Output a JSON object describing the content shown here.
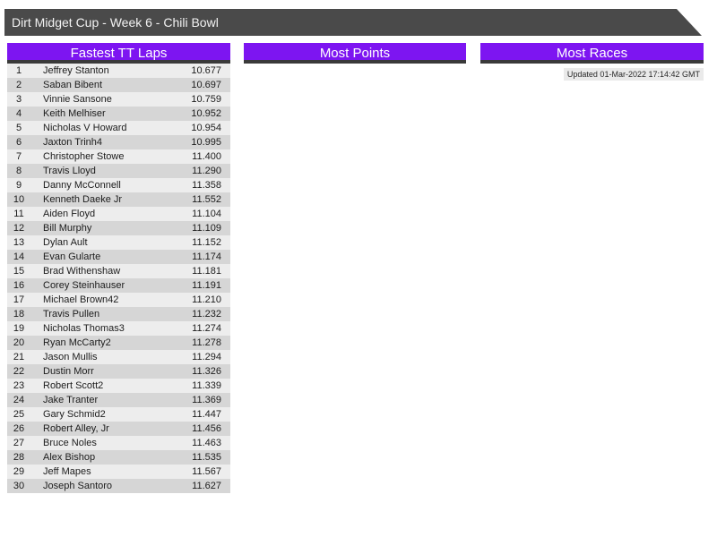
{
  "title_bar": {
    "title": "Dirt Midget Cup - Week 6 - Chili Bowl"
  },
  "updated": {
    "text": "Updated 01-Mar-2022 17:14:42 GMT"
  },
  "colors": {
    "title_bar_bg": "#4a4a4a",
    "panel_header_bg": "#7d15f1",
    "panel_header_underline": "#3a3a3a",
    "row_odd_bg": "#ededed",
    "row_even_bg": "#d6d6d6",
    "updated_bg": "#eaeaea"
  },
  "panels": [
    {
      "title": "Fastest TT Laps",
      "columns": [
        "rank",
        "name",
        "time"
      ],
      "rows": [
        {
          "rank": "1",
          "name": "Jeffrey Stanton",
          "time": "10.677"
        },
        {
          "rank": "2",
          "name": "Saban Bibent",
          "time": "10.697"
        },
        {
          "rank": "3",
          "name": "Vinnie Sansone",
          "time": "10.759"
        },
        {
          "rank": "4",
          "name": "Keith Melhiser",
          "time": "10.952"
        },
        {
          "rank": "5",
          "name": "Nicholas V Howard",
          "time": "10.954"
        },
        {
          "rank": "6",
          "name": "Jaxton Trinh4",
          "time": "10.995"
        },
        {
          "rank": "7",
          "name": "Christopher Stowe",
          "time": "11.400"
        },
        {
          "rank": "8",
          "name": "Travis Lloyd",
          "time": "11.290"
        },
        {
          "rank": "9",
          "name": "Danny McConnell",
          "time": "11.358"
        },
        {
          "rank": "10",
          "name": "Kenneth Daeke Jr",
          "time": "11.552"
        },
        {
          "rank": "11",
          "name": "Aiden Floyd",
          "time": "11.104"
        },
        {
          "rank": "12",
          "name": "Bill Murphy",
          "time": "11.109"
        },
        {
          "rank": "13",
          "name": "Dylan Ault",
          "time": "11.152"
        },
        {
          "rank": "14",
          "name": "Evan Gularte",
          "time": "11.174"
        },
        {
          "rank": "15",
          "name": "Brad Withenshaw",
          "time": "11.181"
        },
        {
          "rank": "16",
          "name": "Corey Steinhauser",
          "time": "11.191"
        },
        {
          "rank": "17",
          "name": "Michael Brown42",
          "time": "11.210"
        },
        {
          "rank": "18",
          "name": "Travis Pullen",
          "time": "11.232"
        },
        {
          "rank": "19",
          "name": "Nicholas Thomas3",
          "time": "11.274"
        },
        {
          "rank": "20",
          "name": "Ryan McCarty2",
          "time": "11.278"
        },
        {
          "rank": "21",
          "name": "Jason Mullis",
          "time": "11.294"
        },
        {
          "rank": "22",
          "name": "Dustin Morr",
          "time": "11.326"
        },
        {
          "rank": "23",
          "name": "Robert Scott2",
          "time": "11.339"
        },
        {
          "rank": "24",
          "name": "Jake Tranter",
          "time": "11.369"
        },
        {
          "rank": "25",
          "name": "Gary Schmid2",
          "time": "11.447"
        },
        {
          "rank": "26",
          "name": "Robert Alley, Jr",
          "time": "11.456"
        },
        {
          "rank": "27",
          "name": "Bruce Noles",
          "time": "11.463"
        },
        {
          "rank": "28",
          "name": "Alex Bishop",
          "time": "11.535"
        },
        {
          "rank": "29",
          "name": "Jeff Mapes",
          "time": "11.567"
        },
        {
          "rank": "30",
          "name": "Joseph Santoro",
          "time": "11.627"
        }
      ]
    },
    {
      "title": "Most Points",
      "rows": []
    },
    {
      "title": "Most Races",
      "rows": []
    }
  ]
}
